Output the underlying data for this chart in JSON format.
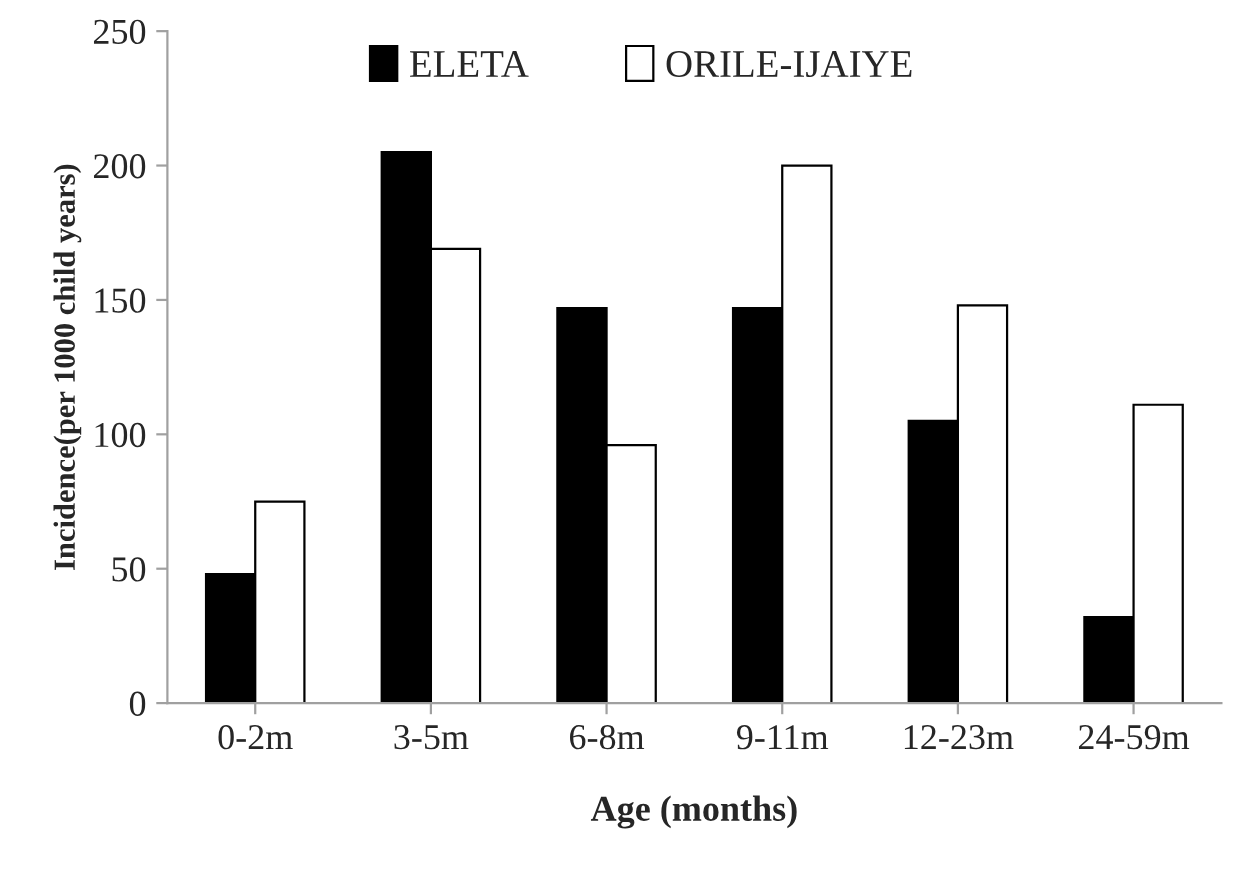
{
  "chart_data": {
    "type": "bar",
    "categories": [
      "0-2m",
      "3-5m",
      "6-8m",
      "9-11m",
      "12-23m",
      "24-59m"
    ],
    "xlabel": "Age (months)",
    "ylabel": "Incidence(per 1000 child years)",
    "series": [
      {
        "name": "ELETA",
        "color": "#000000",
        "values": [
          48,
          205,
          147,
          147,
          105,
          32
        ]
      },
      {
        "name": "ORILE-IJAIYE",
        "color": "#ffffff",
        "values": [
          75,
          169,
          96,
          200,
          148,
          111
        ]
      }
    ],
    "ylim": [
      0,
      250
    ],
    "yticks": [
      0,
      50,
      100,
      150,
      200,
      250
    ],
    "grid": false,
    "legend": "top"
  }
}
